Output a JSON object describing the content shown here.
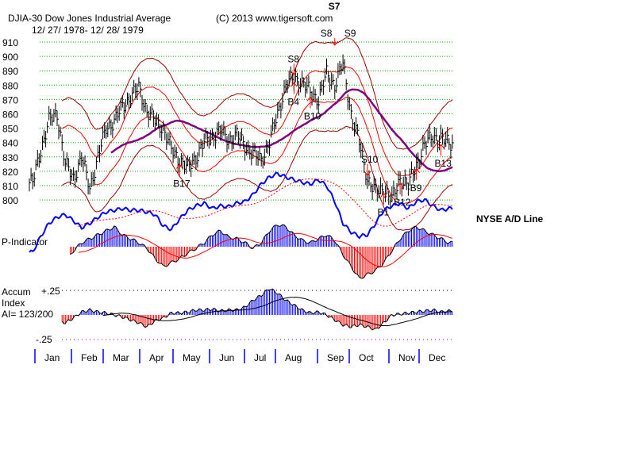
{
  "chart_data": {
    "type": "line",
    "title": "DJIA-30  Dow Jones Industrial Average",
    "subtitle": "12/ 27/ 1978- 12/ 28/ 1979",
    "copyright": "(C) 2013 www.tigersoft.com",
    "ylim": [
      800,
      910
    ],
    "yticks": [
      910,
      900,
      890,
      880,
      870,
      860,
      850,
      840,
      830,
      820,
      810,
      800
    ],
    "months": [
      "Jan",
      "Feb",
      "Mar",
      "Apr",
      "May",
      "Jun",
      "Jul",
      "Aug",
      "Sep",
      "Oct",
      "Nov",
      "Dec"
    ],
    "weekly_close": [
      812,
      835,
      855,
      860,
      825,
      815,
      830,
      808,
      830,
      850,
      855,
      865,
      872,
      878,
      862,
      855,
      850,
      835,
      828,
      822,
      830,
      840,
      845,
      848,
      842,
      845,
      838,
      832,
      828,
      840,
      860,
      880,
      885,
      882,
      875,
      870,
      888,
      880,
      895,
      860,
      840,
      815,
      805,
      808,
      800,
      815,
      810,
      825,
      838,
      845,
      842,
      840
    ],
    "ad_line_label": "NYSE A/D Line",
    "ad_line": [
      2,
      20,
      35,
      42,
      45,
      38,
      30,
      35,
      42,
      48,
      50,
      52,
      50,
      50,
      48,
      45,
      32,
      28,
      40,
      50,
      55,
      58,
      52,
      55,
      54,
      58,
      60,
      68,
      80,
      88,
      92,
      88,
      85,
      82,
      80,
      85,
      78,
      60,
      35,
      25,
      20,
      22,
      35,
      50,
      55,
      58,
      52,
      60,
      62,
      55,
      50,
      52
    ],
    "p_indicator_label": "P-Indicator",
    "p_indicator": [
      0,
      -2,
      -5,
      -10,
      -20,
      -5,
      5,
      10,
      15,
      20,
      25,
      15,
      10,
      5,
      -2,
      -15,
      -25,
      -20,
      -15,
      -8,
      -2,
      5,
      15,
      20,
      12,
      10,
      5,
      -2,
      5,
      20,
      28,
      25,
      15,
      8,
      5,
      10,
      15,
      8,
      -10,
      -25,
      -40,
      -35,
      -30,
      -20,
      -5,
      10,
      20,
      25,
      20,
      15,
      10,
      5
    ],
    "accum_label_1": "Accum",
    "accum_label_2": "Index",
    "accum_ratio": "AI= 123/200",
    "accum_upper": "+.25",
    "accum_lower": "-.25",
    "accum_index": [
      0.05,
      0,
      -0.03,
      -0.05,
      -0.08,
      -0.03,
      0.03,
      0.05,
      0.03,
      0.02,
      0,
      -0.02,
      -0.05,
      -0.08,
      -0.12,
      -0.06,
      -0.03,
      0.02,
      0.02,
      0.03,
      0.05,
      0.05,
      0.06,
      0.04,
      0.05,
      0.05,
      0.08,
      0.15,
      0.2,
      0.27,
      0.22,
      0.15,
      0.1,
      0.05,
      0.02,
      0.03,
      0.0,
      -0.05,
      -0.1,
      -0.12,
      -0.1,
      -0.12,
      -0.15,
      -0.08,
      0.0,
      0.01,
      0.02,
      0.03,
      0.04,
      0.05,
      0.03,
      0.04
    ],
    "signals": [
      {
        "label": "S7",
        "week": 37,
        "pos": "top",
        "bold": true
      },
      {
        "label": "S9",
        "week": 37,
        "pos": "top2"
      },
      {
        "label": "S8",
        "week": 37,
        "pos": "top3"
      },
      {
        "label": "S8",
        "week": 32,
        "pos": "above"
      },
      {
        "label": "S10",
        "week": 41,
        "pos": "above"
      },
      {
        "label": "B4",
        "week": 32,
        "pos": "below"
      },
      {
        "label": "B10",
        "week": 34,
        "pos": "below"
      },
      {
        "label": "B17",
        "week": 18,
        "pos": "below"
      },
      {
        "label": "B1",
        "week": 43,
        "pos": "below"
      },
      {
        "label": "B12",
        "week": 45,
        "pos": "below"
      },
      {
        "label": "B9",
        "week": 47,
        "pos": "below"
      },
      {
        "label": "B13",
        "week": 50,
        "pos": "below"
      }
    ]
  }
}
